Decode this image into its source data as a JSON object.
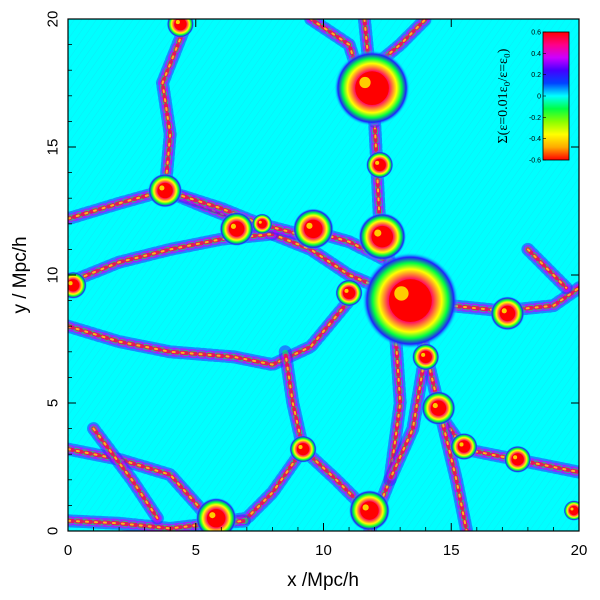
{
  "chart_data": {
    "type": "heatmap",
    "title": "",
    "xlabel": "x /Mpc/h",
    "ylabel": "y / Mpc/h",
    "xlim": [
      0,
      20
    ],
    "ylim": [
      0,
      20
    ],
    "x_ticks": [
      "0",
      "5",
      "10",
      "15",
      "20"
    ],
    "y_ticks": [
      "0",
      "5",
      "10",
      "15",
      "20"
    ],
    "x_tick_values": [
      0,
      5,
      10,
      15,
      20
    ],
    "y_tick_values": [
      0,
      5,
      10,
      15,
      20
    ],
    "background_value": 0.0,
    "colorbar": {
      "label": "Σ(ε=0.01ε₀/ε=ε₀)",
      "range": [
        -0.6,
        0.6
      ],
      "tick_values": [
        0.6,
        0.4,
        0.2,
        0,
        -0.2,
        -0.4,
        -0.6
      ],
      "tick_labels": [
        "0.6",
        "0.4",
        "0.2",
        "0",
        "-0.2",
        "-0.4",
        "-0.6"
      ],
      "colors": [
        "#ff0000",
        "#ff0088",
        "#cc00ff",
        "#4400ff",
        "#0044ff",
        "#00ffff",
        "#00ff44",
        "#88ff00",
        "#ffff00",
        "#ffaa00",
        "#ff0000"
      ]
    },
    "filaments": [
      [
        [
          11.6,
          20
        ],
        [
          11.8,
          18
        ],
        [
          12.0,
          16
        ],
        [
          12.1,
          14
        ],
        [
          12.2,
          12
        ],
        [
          12.6,
          10.5
        ],
        [
          13.4,
          9.0
        ]
      ],
      [
        [
          13.4,
          9.0
        ],
        [
          14.0,
          7.0
        ],
        [
          14.6,
          4.5
        ],
        [
          15.5,
          3.2
        ],
        [
          17.5,
          2.8
        ],
        [
          20,
          2.3
        ]
      ],
      [
        [
          13.4,
          9.0
        ],
        [
          15.0,
          8.8
        ],
        [
          17.0,
          8.6
        ],
        [
          19.0,
          8.8
        ],
        [
          20,
          9.5
        ]
      ],
      [
        [
          13.4,
          9.0
        ],
        [
          11.0,
          10.0
        ],
        [
          9.5,
          11.0
        ],
        [
          7.0,
          12.0
        ],
        [
          5.0,
          12.8
        ],
        [
          3.8,
          13.3
        ]
      ],
      [
        [
          0,
          9.7
        ],
        [
          2.0,
          10.5
        ],
        [
          4.0,
          11.0
        ],
        [
          6.0,
          11.4
        ],
        [
          8.0,
          11.6
        ]
      ],
      [
        [
          0,
          8.0
        ],
        [
          2.0,
          7.4
        ],
        [
          4.0,
          7.0
        ],
        [
          6.5,
          6.8
        ],
        [
          8.0,
          6.5
        ],
        [
          9.5,
          7.2
        ],
        [
          11.0,
          9.0
        ]
      ],
      [
        [
          3.8,
          13.3
        ],
        [
          2.0,
          12.8
        ],
        [
          0,
          12.2
        ]
      ],
      [
        [
          3.8,
          13.3
        ],
        [
          4.0,
          15.5
        ],
        [
          3.7,
          17.5
        ],
        [
          4.5,
          19.5
        ]
      ],
      [
        [
          3.8,
          13.3
        ],
        [
          6.0,
          12.6
        ],
        [
          7.5,
          12.0
        ],
        [
          9.0,
          11.6
        ]
      ],
      [
        [
          12.0,
          16
        ],
        [
          11.0,
          19.0
        ],
        [
          9.5,
          20
        ]
      ],
      [
        [
          11.8,
          18
        ],
        [
          13.0,
          19.0
        ],
        [
          14.0,
          20
        ]
      ],
      [
        [
          9.6,
          11.7
        ],
        [
          11.0,
          11.3
        ],
        [
          12.6,
          10.5
        ]
      ],
      [
        [
          12.6,
          10.5
        ],
        [
          12.8,
          8.0
        ],
        [
          13.0,
          5.0
        ],
        [
          12.6,
          2.0
        ],
        [
          11.8,
          0
        ]
      ],
      [
        [
          14.0,
          7.0
        ],
        [
          13.5,
          4.0
        ],
        [
          12.6,
          2.0
        ]
      ],
      [
        [
          9.2,
          3.2
        ],
        [
          8.0,
          1.5
        ],
        [
          7.0,
          0.5
        ],
        [
          5.7,
          0.3
        ]
      ],
      [
        [
          9.2,
          3.2
        ],
        [
          10.5,
          2.0
        ],
        [
          11.5,
          1.0
        ]
      ],
      [
        [
          9.2,
          3.2
        ],
        [
          8.8,
          5.0
        ],
        [
          8.5,
          7.0
        ]
      ],
      [
        [
          0,
          3.2
        ],
        [
          2.0,
          2.8
        ],
        [
          4.0,
          2.2
        ],
        [
          5.7,
          0.3
        ]
      ],
      [
        [
          0,
          0.4
        ],
        [
          2.0,
          0.3
        ],
        [
          4.0,
          0.1
        ],
        [
          5.7,
          0.3
        ],
        [
          7.0,
          0.4
        ]
      ],
      [
        [
          1.0,
          4.0
        ],
        [
          2.5,
          2.0
        ],
        [
          3.5,
          0.5
        ]
      ],
      [
        [
          18.0,
          11.0
        ],
        [
          19.5,
          9.5
        ]
      ],
      [
        [
          14.6,
          4.5
        ],
        [
          15.2,
          2.0
        ],
        [
          15.6,
          0
        ]
      ]
    ],
    "knots": [
      {
        "x": 13.4,
        "y": 9.0,
        "r": 1.4
      },
      {
        "x": 11.9,
        "y": 17.3,
        "r": 1.1
      },
      {
        "x": 12.3,
        "y": 11.5,
        "r": 0.7
      },
      {
        "x": 3.8,
        "y": 13.3,
        "r": 0.5
      },
      {
        "x": 9.6,
        "y": 11.8,
        "r": 0.6
      },
      {
        "x": 6.6,
        "y": 11.8,
        "r": 0.5
      },
      {
        "x": 5.8,
        "y": 0.5,
        "r": 0.6
      },
      {
        "x": 11.8,
        "y": 0.8,
        "r": 0.6
      },
      {
        "x": 9.2,
        "y": 3.2,
        "r": 0.4
      },
      {
        "x": 14.5,
        "y": 4.8,
        "r": 0.5
      },
      {
        "x": 15.5,
        "y": 3.3,
        "r": 0.4
      },
      {
        "x": 17.2,
        "y": 8.5,
        "r": 0.5
      },
      {
        "x": 17.6,
        "y": 2.8,
        "r": 0.4
      },
      {
        "x": 0.2,
        "y": 9.6,
        "r": 0.4
      },
      {
        "x": 4.4,
        "y": 19.8,
        "r": 0.4
      },
      {
        "x": 19.8,
        "y": 0.8,
        "r": 0.3
      },
      {
        "x": 12.2,
        "y": 14.3,
        "r": 0.4
      },
      {
        "x": 14.0,
        "y": 6.8,
        "r": 0.4
      },
      {
        "x": 11.0,
        "y": 9.3,
        "r": 0.4
      },
      {
        "x": 7.6,
        "y": 12.0,
        "r": 0.3
      }
    ]
  }
}
